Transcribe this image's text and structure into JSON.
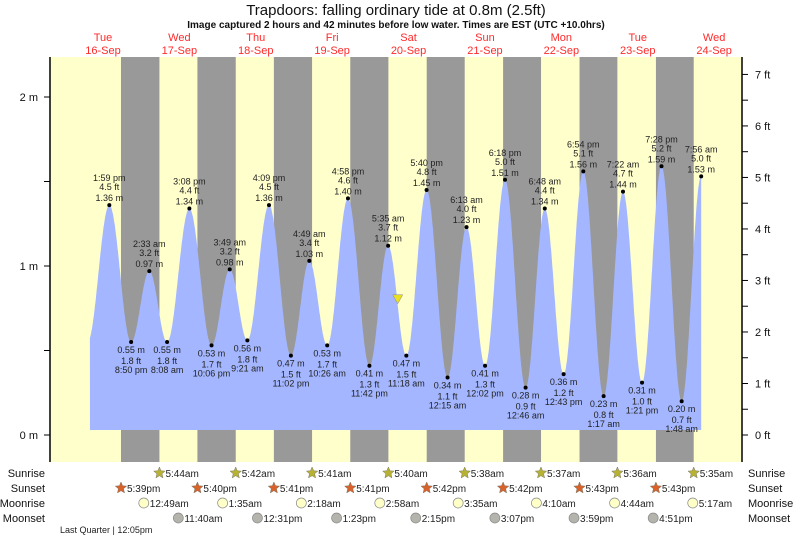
{
  "chart_data": {
    "type": "area",
    "title": "Trapdoors: falling  ordinary tide at 0.8m (2.5ft)",
    "subtitle": "Image captured 2 hours and 42 minutes before low water. Times are EST (UTC +10.0hrs)",
    "days": [
      {
        "dow": "Tue",
        "date": "16-Sep"
      },
      {
        "dow": "Wed",
        "date": "17-Sep"
      },
      {
        "dow": "Thu",
        "date": "18-Sep"
      },
      {
        "dow": "Fri",
        "date": "19-Sep"
      },
      {
        "dow": "Sat",
        "date": "20-Sep"
      },
      {
        "dow": "Sun",
        "date": "21-Sep"
      },
      {
        "dow": "Mon",
        "date": "22-Sep"
      },
      {
        "dow": "Tue",
        "date": "23-Sep"
      },
      {
        "dow": "Wed",
        "date": "24-Sep"
      }
    ],
    "y_left": {
      "unit": "m",
      "ticks": [
        "0 m",
        "1 m",
        "2 m"
      ],
      "values": [
        0,
        1,
        2
      ]
    },
    "y_right": {
      "unit": "ft",
      "ticks": [
        "0 ft",
        "1 ft",
        "2 ft",
        "3 ft",
        "4 ft",
        "5 ft",
        "6 ft",
        "7 ft"
      ],
      "values": [
        0,
        1,
        2,
        3,
        4,
        5,
        6,
        7
      ]
    },
    "current": {
      "height_m": 0.8,
      "minutes_before_low": 162
    },
    "extremes": [
      {
        "date": "16-Sep",
        "time": "1:59 pm",
        "type": "high",
        "m": 1.36,
        "ft": 4.5
      },
      {
        "date": "16-Sep",
        "time": "8:50 pm",
        "type": "low",
        "m": 0.55,
        "ft": 1.8
      },
      {
        "date": "17-Sep",
        "time": "2:33 am",
        "type": "high",
        "m": 0.97,
        "ft": 3.2
      },
      {
        "date": "17-Sep",
        "time": "8:08 am",
        "type": "low",
        "m": 0.55,
        "ft": 1.8
      },
      {
        "date": "17-Sep",
        "time": "3:08 pm",
        "type": "high",
        "m": 1.34,
        "ft": 4.4
      },
      {
        "date": "17-Sep",
        "time": "10:06 pm",
        "type": "low",
        "m": 0.53,
        "ft": 1.7
      },
      {
        "date": "18-Sep",
        "time": "3:49 am",
        "type": "high",
        "m": 0.98,
        "ft": 3.2
      },
      {
        "date": "18-Sep",
        "time": "9:21 am",
        "type": "low",
        "m": 0.56,
        "ft": 1.8
      },
      {
        "date": "18-Sep",
        "time": "4:09 pm",
        "type": "high",
        "m": 1.36,
        "ft": 4.5
      },
      {
        "date": "18-Sep",
        "time": "11:02 pm",
        "type": "low",
        "m": 0.47,
        "ft": 1.5
      },
      {
        "date": "19-Sep",
        "time": "4:49 am",
        "type": "high",
        "m": 1.03,
        "ft": 3.4
      },
      {
        "date": "19-Sep",
        "time": "10:26 am",
        "type": "low",
        "m": 0.53,
        "ft": 1.7
      },
      {
        "date": "19-Sep",
        "time": "4:58 pm",
        "type": "high",
        "m": 1.4,
        "ft": 4.6
      },
      {
        "date": "19-Sep",
        "time": "11:42 pm",
        "type": "low",
        "m": 0.41,
        "ft": 1.3
      },
      {
        "date": "20-Sep",
        "time": "5:35 am",
        "type": "high",
        "m": 1.12,
        "ft": 3.7
      },
      {
        "date": "20-Sep",
        "time": "11:18 am",
        "type": "low",
        "m": 0.47,
        "ft": 1.5
      },
      {
        "date": "20-Sep",
        "time": "5:40 pm",
        "type": "high",
        "m": 1.45,
        "ft": 4.8
      },
      {
        "date": "21-Sep",
        "time": "12:15 am",
        "type": "low",
        "m": 0.34,
        "ft": 1.1
      },
      {
        "date": "21-Sep",
        "time": "6:13 am",
        "type": "high",
        "m": 1.23,
        "ft": 4.0
      },
      {
        "date": "21-Sep",
        "time": "12:02 pm",
        "type": "low",
        "m": 0.41,
        "ft": 1.3
      },
      {
        "date": "21-Sep",
        "time": "6:18 pm",
        "type": "high",
        "m": 1.51,
        "ft": 5.0
      },
      {
        "date": "22-Sep",
        "time": "12:46 am",
        "type": "low",
        "m": 0.28,
        "ft": 0.9
      },
      {
        "date": "22-Sep",
        "time": "6:48 am",
        "type": "high",
        "m": 1.34,
        "ft": 4.4
      },
      {
        "date": "22-Sep",
        "time": "12:43 pm",
        "type": "low",
        "m": 0.36,
        "ft": 1.2
      },
      {
        "date": "22-Sep",
        "time": "6:54 pm",
        "type": "high",
        "m": 1.56,
        "ft": 5.1
      },
      {
        "date": "23-Sep",
        "time": "1:17 am",
        "type": "low",
        "m": 0.23,
        "ft": 0.8
      },
      {
        "date": "23-Sep",
        "time": "7:22 am",
        "type": "high",
        "m": 1.44,
        "ft": 4.7
      },
      {
        "date": "23-Sep",
        "time": "1:21 pm",
        "type": "low",
        "m": 0.31,
        "ft": 1.0
      },
      {
        "date": "23-Sep",
        "time": "7:28 pm",
        "type": "high",
        "m": 1.59,
        "ft": 5.2
      },
      {
        "date": "24-Sep",
        "time": "1:48 am",
        "type": "low",
        "m": 0.2,
        "ft": 0.7
      },
      {
        "date": "24-Sep",
        "time": "7:56 am",
        "type": "high",
        "m": 1.53,
        "ft": 5.0
      }
    ],
    "astro_rows": [
      {
        "label": "Sunrise",
        "kind": "sunrise",
        "color": "#b8b234",
        "events": [
          {
            "date": "17-Sep",
            "time": "5:44am"
          },
          {
            "date": "18-Sep",
            "time": "5:42am"
          },
          {
            "date": "19-Sep",
            "time": "5:41am"
          },
          {
            "date": "20-Sep",
            "time": "5:40am"
          },
          {
            "date": "21-Sep",
            "time": "5:38am"
          },
          {
            "date": "22-Sep",
            "time": "5:37am"
          },
          {
            "date": "23-Sep",
            "time": "5:36am"
          },
          {
            "date": "24-Sep",
            "time": "5:35am"
          }
        ]
      },
      {
        "label": "Sunset",
        "kind": "sunset",
        "color": "#d9612a",
        "events": [
          {
            "date": "16-Sep",
            "time": "5:39pm"
          },
          {
            "date": "17-Sep",
            "time": "5:40pm"
          },
          {
            "date": "18-Sep",
            "time": "5:41pm"
          },
          {
            "date": "19-Sep",
            "time": "5:41pm"
          },
          {
            "date": "20-Sep",
            "time": "5:42pm"
          },
          {
            "date": "21-Sep",
            "time": "5:42pm"
          },
          {
            "date": "22-Sep",
            "time": "5:43pm"
          },
          {
            "date": "23-Sep",
            "time": "5:43pm"
          }
        ]
      },
      {
        "label": "Moonrise",
        "kind": "moonrise",
        "color": "#ffffc8",
        "events": [
          {
            "date": "17-Sep",
            "time": "12:49am"
          },
          {
            "date": "18-Sep",
            "time": "1:35am"
          },
          {
            "date": "19-Sep",
            "time": "2:18am"
          },
          {
            "date": "20-Sep",
            "time": "2:58am"
          },
          {
            "date": "21-Sep",
            "time": "3:35am"
          },
          {
            "date": "22-Sep",
            "time": "4:10am"
          },
          {
            "date": "23-Sep",
            "time": "4:44am"
          },
          {
            "date": "24-Sep",
            "time": "5:17am"
          }
        ]
      },
      {
        "label": "Moonset",
        "kind": "moonset",
        "color": "#b4b4ac",
        "events": [
          {
            "date": "17-Sep",
            "time": "11:40am"
          },
          {
            "date": "18-Sep",
            "time": "12:31pm"
          },
          {
            "date": "19-Sep",
            "time": "1:23pm"
          },
          {
            "date": "20-Sep",
            "time": "2:15pm"
          },
          {
            "date": "21-Sep",
            "time": "3:07pm"
          },
          {
            "date": "22-Sep",
            "time": "3:59pm"
          },
          {
            "date": "23-Sep",
            "time": "4:51pm"
          }
        ]
      }
    ],
    "moon_phase": "Last Quarter | 12:05pm",
    "colors": {
      "day": "#ffffcc",
      "night": "#999999",
      "water": "#a3b6ff",
      "day_label": "#ff2a2a",
      "marker": "#e8e020"
    }
  }
}
